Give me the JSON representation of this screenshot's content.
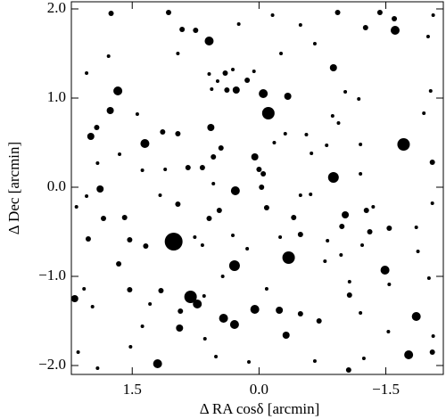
{
  "chart_data": {
    "type": "scatter",
    "xlabel": "Δ RA cosδ [arcmin]",
    "ylabel": "Δ Dec  [arcmin]",
    "xlim": [
      2.22,
      -2.18
    ],
    "ylim": [
      -2.1,
      2.08
    ],
    "xticks": [
      1.5,
      {
        "value": 0,
        "label": "0.0"
      },
      {
        "value": -1.5,
        "label": "−1.5"
      }
    ],
    "yticks": [
      {
        "value": 2,
        "label": "2.0"
      },
      {
        "value": 1,
        "label": "1.0"
      },
      {
        "value": 0,
        "label": "0.0"
      },
      {
        "value": -1,
        "label": "−1.0"
      },
      {
        "value": -2,
        "label": "−2.0"
      }
    ],
    "color": "#000000",
    "x": [
      1.01,
      0.81,
      -0.11,
      -1.71,
      -0.35,
      0.29,
      -0.88,
      0.59,
      1.67,
      1.35,
      -0.05,
      0.28,
      0.73,
      0.42,
      0.29,
      0.05,
      -1.49,
      -1.61,
      -1.86,
      -1.77,
      1.2,
      0.94,
      -0.88,
      -1.02,
      -0.34,
      0.27,
      0.57,
      0.05,
      1.76,
      1.88,
      1.99,
      2.18,
      1.92,
      -0.32,
      -0.24,
      0.38,
      0.14,
      0,
      -0.03,
      0.96,
      0.47,
      0.59,
      -0.09,
      -0.41,
      -0.49,
      -0.98,
      -1.27,
      -1.31,
      -1.54,
      -1.07,
      -0.71,
      -1.06,
      -1.6,
      -1.43,
      -1.26,
      -0.93,
      0.91,
      0.75,
      1.75,
      1.07,
      0.4,
      1.14,
      0.96,
      0.84,
      0.45,
      0.54,
      0.67,
      -0.05,
      1.59,
      1.53,
      2.02,
      1.84,
      1.34,
      1.66,
      1.53,
      1.16,
      0.93,
      -0.49,
      -2.05,
      -2.05,
      1.38,
      1.52,
      0.12,
      -0.78,
      -0.81,
      -0.97,
      -1.07,
      -1.22,
      -1.2,
      -1.54,
      -1.53,
      -2.06,
      -2.01,
      -1.86,
      -1.88,
      -2.05,
      -1.95,
      -2.03,
      -2.0,
      -2.06,
      -1.18,
      -1.02,
      -0.94,
      -1.2,
      -0.8,
      -0.87,
      -0.62,
      -0.56,
      -0.31,
      -0.18,
      -0.26,
      -0.66,
      -0.49,
      -0.16,
      0.24,
      0.96,
      1.44,
      1.65,
      2.04,
      1.78,
      1.91,
      2.16,
      2.04,
      1.38,
      1.11,
      1.17,
      0.76,
      0.67,
      0.54,
      0.31,
      0.14,
      -0.25,
      -0.49,
      -0.61,
      0.43,
      -0.09,
      0.64,
      0.51,
      -0.66,
      -1.24,
      2.14,
      1.91,
      2.07,
      1.97,
      1.29,
      0.65,
      -1.2,
      -1.35,
      0.49,
      0.56,
      0.31,
      0.06,
      0.59
    ],
    "y": [
      -0.61,
      -1.23,
      0.83,
      0.48,
      -0.79,
      -0.88,
      0.11,
      1.64,
      1.08,
      0.49,
      1.05,
      -0.04,
      -1.31,
      -1.47,
      -1.54,
      -1.37,
      -0.93,
      1.76,
      -1.45,
      -1.88,
      -1.98,
      -1.58,
      1.34,
      -0.31,
      1.02,
      1.09,
      0.67,
      0.34,
      0.86,
      -0.02,
      0.57,
      -1.25,
      0.67,
      -1.66,
      -1.38,
      1.09,
      1.2,
      0.2,
      0,
      -0.19,
      -0.26,
      -0.35,
      -0.23,
      -0.34,
      -0.53,
      -0.44,
      -0.26,
      -0.5,
      -0.46,
      -1.21,
      -1.5,
      -2.05,
      1.89,
      1.96,
      1.79,
      1.96,
      1.77,
      1.76,
      1.95,
      1.96,
      1.28,
      0.62,
      0.6,
      0.22,
      0.44,
      0.34,
      0.22,
      0.15,
      -0.34,
      -0.59,
      -0.58,
      -0.35,
      -0.66,
      -0.86,
      -1.15,
      -1.16,
      -1.39,
      -1.42,
      -1.85,
      0.28,
      -1.56,
      -1.79,
      -1.96,
      -0.83,
      -0.6,
      -0.76,
      -1.06,
      -0.65,
      -1.41,
      -1.09,
      -1.62,
      -1.67,
      -1.02,
      -0.45,
      -0.72,
      -0.18,
      0.83,
      1.08,
      1.69,
      1.93,
      0.99,
      1.07,
      0.72,
      0.48,
      0.47,
      0.8,
      0.38,
      0.59,
      0.6,
      0.5,
      1.5,
      1.61,
      1.82,
      1.93,
      1.83,
      1.5,
      0.82,
      0.37,
      1.28,
      1.47,
      0.27,
      -0.22,
      -0.1,
      0.19,
      0.2,
      -0.09,
      -0.56,
      -0.65,
      0.04,
      -0.54,
      -0.69,
      -0.56,
      -0.09,
      -0.08,
      -1.0,
      -1.14,
      -1.7,
      -1.9,
      -1.95,
      -1.92,
      -1.85,
      -2.03,
      -1.14,
      -1.34,
      -1.31,
      -1.22,
      0.15,
      -0.22,
      1.19,
      1.1,
      1.32,
      1.3,
      1.27
    ],
    "sizes": [
      10,
      7,
      7,
      7,
      7,
      6,
      6,
      5,
      5,
      5,
      5,
      5,
      5,
      5,
      5,
      5,
      5,
      5,
      5,
      5,
      5,
      4,
      4,
      4,
      4,
      4,
      4,
      4,
      4,
      4,
      4,
      4,
      3,
      4,
      4,
      3,
      3,
      3,
      3,
      3,
      3,
      3,
      3,
      3,
      3,
      3,
      3,
      3,
      3,
      3,
      3,
      3,
      3,
      3,
      3,
      3,
      3,
      3,
      3,
      3,
      3,
      3,
      3,
      3,
      3,
      3,
      3,
      3,
      3,
      3,
      3,
      3,
      3,
      3,
      3,
      3,
      3,
      3,
      3,
      3,
      2,
      2,
      2,
      2,
      2,
      2,
      2,
      2,
      2,
      2,
      2,
      2,
      2,
      2,
      2,
      2,
      2,
      2,
      2,
      2,
      2,
      2,
      2,
      2,
      2,
      2,
      2,
      2,
      2,
      2,
      2,
      2,
      2,
      2,
      2,
      2,
      2,
      2,
      2,
      2,
      2,
      2,
      2,
      2,
      2,
      2,
      2,
      2,
      2,
      2,
      2,
      2,
      2,
      2,
      2,
      2,
      2,
      2,
      2,
      2,
      2,
      2,
      2,
      2,
      2,
      2,
      2,
      2,
      2,
      2,
      2,
      2,
      2
    ]
  }
}
